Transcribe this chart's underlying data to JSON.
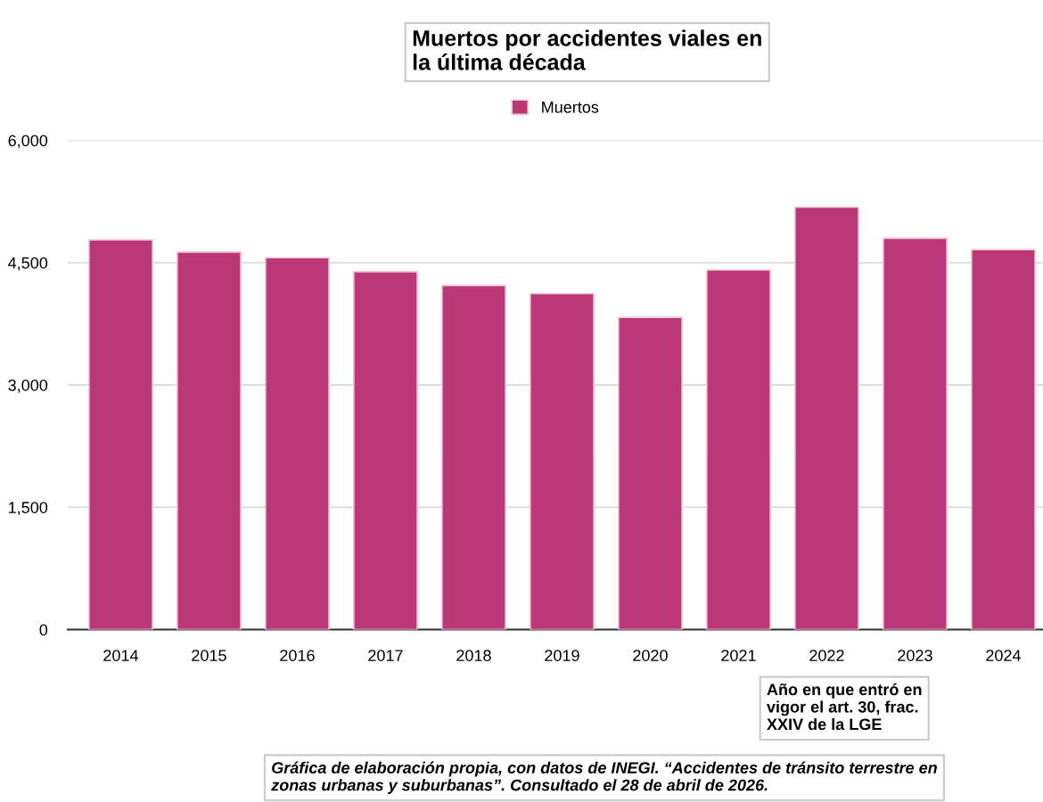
{
  "chart_data": {
    "type": "bar",
    "title": "Muertos por accidentes viales en\nla última década",
    "categories": [
      "2014",
      "2015",
      "2016",
      "2017",
      "2018",
      "2019",
      "2020",
      "2021",
      "2022",
      "2023",
      "2024"
    ],
    "series": [
      {
        "name": "Muertos",
        "color": "#bb3877",
        "values": [
          4780,
          4630,
          4560,
          4390,
          4220,
          4120,
          3830,
          4410,
          5180,
          4800,
          4660
        ]
      }
    ],
    "ylim": [
      0,
      6000
    ],
    "yticks": [
      0,
      {
        "value": 1500,
        "label": "1,500"
      },
      {
        "value": 3000,
        "label": "3,000"
      },
      {
        "value": 4500,
        "label": "4,500"
      },
      {
        "value": 6000,
        "label": "6,000"
      }
    ],
    "grid": "y",
    "legend": "top",
    "annotations": [
      "Año en que entró en\nvigor el art. 30, frac.\nXXIV de la LGE",
      "Gráfica de elaboración propia, con datos de INEGI. “Accidentes de tránsito terrestre en\nzonas urbanas y suburbanas”. Consultado el 28 de abril de 2026."
    ]
  }
}
